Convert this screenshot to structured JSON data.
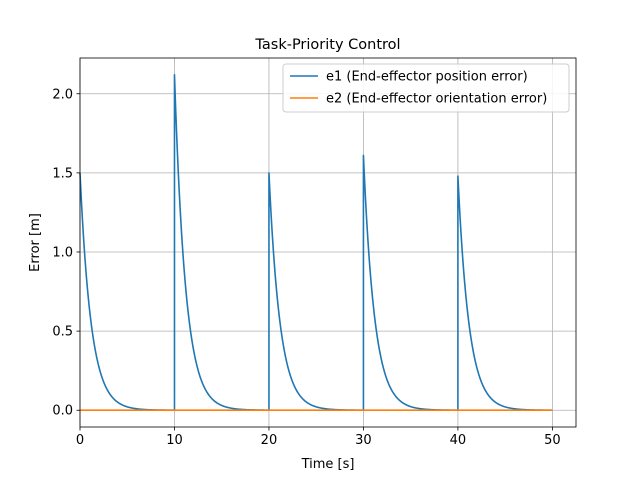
{
  "chart_data": {
    "type": "line",
    "title": "Task-Priority Control",
    "xlabel": "Time [s]",
    "ylabel": "Error [m]",
    "xlim": [
      0,
      52.5
    ],
    "ylim": [
      -0.106,
      2.226
    ],
    "xticks": [
      0,
      10,
      20,
      30,
      40,
      50
    ],
    "xtick_labels": [
      "0",
      "10",
      "20",
      "30",
      "40",
      "50"
    ],
    "yticks": [
      0.0,
      0.5,
      1.0,
      1.5,
      2.0
    ],
    "ytick_labels": [
      "0.0",
      "0.5",
      "1.0",
      "1.5",
      "2.0"
    ],
    "grid": true,
    "legend_position": "upper-right",
    "series": [
      {
        "name": "e1 (End-effector position error)",
        "color": "#1f77b4",
        "decay_rate": 0.85,
        "segments": [
          {
            "start": 0,
            "end": 10,
            "peak": 1.5
          },
          {
            "start": 10,
            "end": 20,
            "peak": 2.12
          },
          {
            "start": 20,
            "end": 30,
            "peak": 1.5
          },
          {
            "start": 30,
            "end": 40,
            "peak": 1.61
          },
          {
            "start": 40,
            "end": 50,
            "peak": 1.48
          }
        ]
      },
      {
        "name": "e2 (End-effector orientation error)",
        "color": "#ff7f0e",
        "x": [
          0,
          50
        ],
        "y": [
          0.0,
          0.0
        ]
      }
    ]
  }
}
